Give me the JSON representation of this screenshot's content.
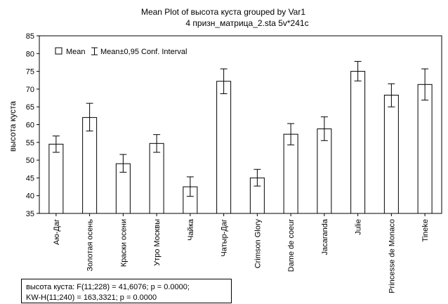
{
  "chart_data": {
    "type": "bar",
    "title": "Mean Plot of высота куста grouped by  Var1",
    "subtitle": "4 призн_матрица_2.sta 5v*241c",
    "xlabel": "",
    "ylabel": "высота  куста",
    "ylim": [
      35,
      85
    ],
    "yticks": [
      35,
      40,
      45,
      50,
      55,
      60,
      65,
      70,
      75,
      80,
      85
    ],
    "grid": false,
    "legend_position": "top-left",
    "legend": {
      "mean_label": "Mean",
      "ci_label": "Mean±0,95 Conf. Interval"
    },
    "categories": [
      "Аю-Даг",
      "Золотая осень",
      "Краски осени",
      "Утро Москвы",
      "Чайка",
      "Чатыр-Даг",
      "Crimson Glory",
      "Dame de coeur",
      "Jacaranda",
      "Julie",
      "Princesse de Monaco",
      "Tineke"
    ],
    "series": [
      {
        "values": [
          54.5,
          62.0,
          49.0,
          54.7,
          42.5,
          72.2,
          45.0,
          57.3,
          58.8,
          75.0,
          68.3,
          71.3
        ],
        "ci_low": [
          52.2,
          58.2,
          46.6,
          52.2,
          39.8,
          68.7,
          42.7,
          54.3,
          55.5,
          72.3,
          65.0,
          66.9
        ],
        "ci_high": [
          56.8,
          66.0,
          51.6,
          57.2,
          45.3,
          75.7,
          47.4,
          60.3,
          62.2,
          77.8,
          71.5,
          75.7
        ]
      }
    ]
  },
  "stats_box": {
    "line1": "высота куста:  F(11;228) = 41,6076; p = 0.0000;",
    "line2": "KW-H(11;240) = 163,3321; p = 0.0000"
  }
}
